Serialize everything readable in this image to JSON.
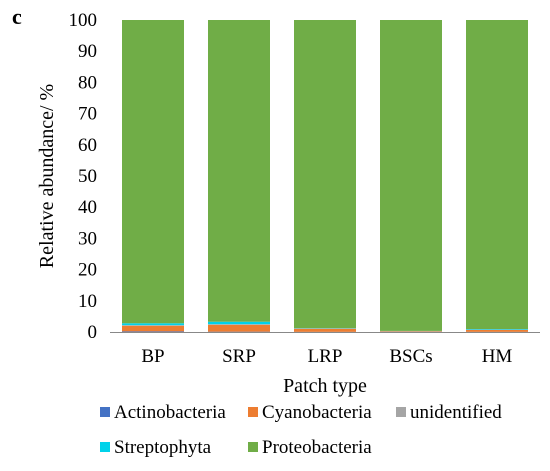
{
  "panel_label": "c",
  "chart_data": {
    "type": "bar",
    "stacked": true,
    "title": "",
    "xlabel": "Patch type",
    "ylabel": "Relative abundance/ %",
    "ylim": [
      0,
      100
    ],
    "yticks": [
      "0",
      "10",
      "20",
      "30",
      "40",
      "50",
      "60",
      "70",
      "80",
      "90",
      "100"
    ],
    "categories": [
      "BP",
      "SRP",
      "LRP",
      "BSCs",
      "HM"
    ],
    "grid": false,
    "legend_position": "bottom",
    "series": [
      {
        "name": "Actinobacteria",
        "color": "#4472C4",
        "values": [
          0.2,
          0.1,
          0.05,
          0.05,
          0.05
        ]
      },
      {
        "name": "Cyanobacteria",
        "color": "#ED7D31",
        "values": [
          1.8,
          2.2,
          1.0,
          0.2,
          0.6
        ]
      },
      {
        "name": "unidentified",
        "color": "#A5A5A5",
        "values": [
          0.2,
          0.2,
          0.1,
          0.05,
          0.1
        ]
      },
      {
        "name": "Streptophyta",
        "color": "#00D2EA",
        "values": [
          0.6,
          0.8,
          0.1,
          0.05,
          0.2
        ]
      },
      {
        "name": "Proteobacteria",
        "color": "#70AD47",
        "values": [
          97.2,
          96.7,
          98.75,
          99.65,
          99.05
        ]
      }
    ],
    "legend_rows": [
      [
        "Actinobacteria",
        "Cyanobacteria",
        "unidentified"
      ],
      [
        "Streptophyta",
        "Proteobacteria"
      ]
    ]
  }
}
